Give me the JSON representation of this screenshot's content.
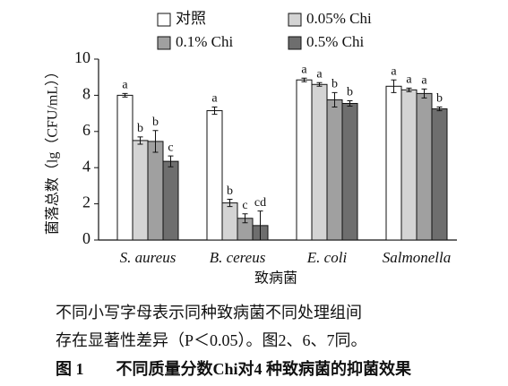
{
  "chart_data": {
    "type": "bar",
    "x_label": "致病菌",
    "y_label": "菌落总数（lg（CFU/mL））",
    "categories": [
      "S. aureus",
      "B. cereus",
      "E. coli",
      "Salmonella"
    ],
    "series": [
      {
        "name": "对照",
        "color": "#ffffff",
        "values": [
          8.0,
          7.15,
          8.85,
          8.5
        ],
        "errors": [
          0.1,
          0.2,
          0.1,
          0.35
        ],
        "letters": [
          "a",
          "a",
          "a",
          "a"
        ]
      },
      {
        "name": "0.05% Chi",
        "color": "#d4d4d4",
        "values": [
          5.5,
          2.05,
          8.6,
          8.3
        ],
        "errors": [
          0.2,
          0.2,
          0.1,
          0.1
        ],
        "letters": [
          "b",
          "b",
          "a",
          "a"
        ]
      },
      {
        "name": "0.1% Chi",
        "color": "#a0a0a0",
        "values": [
          5.45,
          1.2,
          7.75,
          8.1
        ],
        "errors": [
          0.6,
          0.25,
          0.4,
          0.25
        ],
        "letters": [
          "b",
          "c",
          "b",
          "a"
        ]
      },
      {
        "name": "0.5% Chi",
        "color": "#6e6e6e",
        "values": [
          4.35,
          0.8,
          7.55,
          7.25
        ],
        "errors": [
          0.3,
          0.8,
          0.15,
          0.1
        ],
        "letters": [
          "c",
          "cd",
          "b",
          "b"
        ]
      }
    ],
    "ylim": [
      0,
      10
    ],
    "yticks": [
      0,
      2,
      4,
      6,
      8,
      10
    ],
    "legend": "top"
  },
  "caption": {
    "lines": [
      "不同小写字母表示同种致病菌不同处理组间",
      "存在显著性差异（P＜0.05）。图2、6、7同。"
    ],
    "figure_title": "图 1　　不同质量分数Chi对4 种致病菌的抑菌效果"
  }
}
